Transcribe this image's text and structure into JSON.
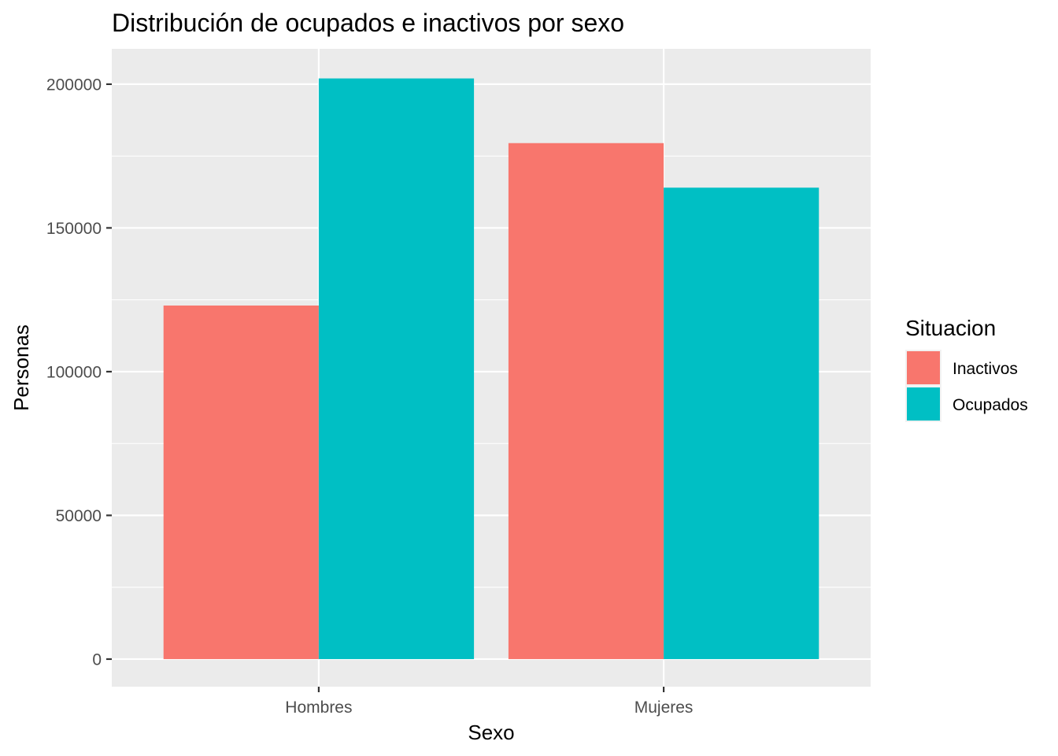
{
  "chart_data": {
    "type": "bar",
    "title": "Distribución de ocupados e inactivos por sexo",
    "xlabel": "Sexo",
    "ylabel": "Personas",
    "categories": [
      "Hombres",
      "Mujeres"
    ],
    "series": [
      {
        "name": "Inactivos",
        "color": "#F8766D",
        "values": [
          123000,
          179500
        ]
      },
      {
        "name": "Ocupados",
        "color": "#00BFC4",
        "values": [
          202000,
          164000
        ]
      }
    ],
    "y_ticks": [
      0,
      50000,
      100000,
      150000,
      200000
    ],
    "y_tick_labels": [
      "0",
      "50000",
      "100000",
      "150000",
      "200000"
    ],
    "ylim": [
      -9600,
      212300
    ],
    "grid": true,
    "legend": {
      "title": "Situacion",
      "position": "right"
    },
    "panel_background": "#EBEBEB",
    "grid_color": "#FFFFFF"
  }
}
